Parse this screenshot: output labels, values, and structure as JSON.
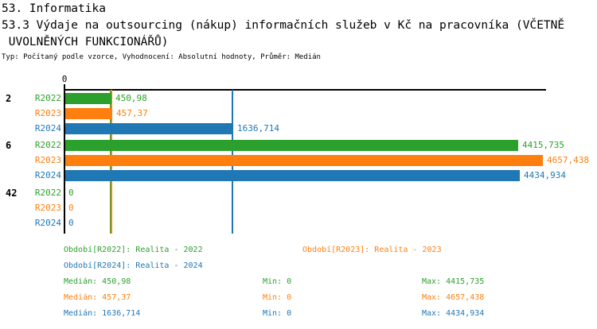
{
  "header": {
    "title": "53. Informatika",
    "subtitle_line1": "53.3 Výdaje na outsourcing (nákup) informačních služeb v Kč na pracovníka (VČETNĚ",
    "subtitle_line2": " UVOLNĚNÝCH FUNKCIONÁŘŮ)",
    "meta": "Typ: Počítaný podle vzorce, Vyhodnocení: Absolutní hodnoty, Průměr: Medián"
  },
  "chart_data": {
    "type": "bar",
    "orientation": "horizontal",
    "title": "53. Informatika",
    "subtitle": "53.3 Výdaje na outsourcing (nákup) informačních služeb v Kč na pracovníka (VČETNĚ UVOLNĚNÝCH FUNKCIONÁŘŮ)",
    "meta": "Typ: Počítaný podle vzorce, Vyhodnocení: Absolutní hodnoty, Průměr: Medián",
    "x_axis": {
      "zero_label": "0",
      "min": 0,
      "grid": false
    },
    "legend_position": "bottom",
    "series": [
      {
        "id": "R2022",
        "name": "Realita - 2022",
        "color": "#2ca02c",
        "median": 450.98,
        "min": 0,
        "max": 4415.735
      },
      {
        "id": "R2023",
        "name": "Realita - 2023",
        "color": "#ff7f0e",
        "median": 457.37,
        "min": 0,
        "max": 4657.438
      },
      {
        "id": "R2024",
        "name": "Realita - 2024",
        "color": "#1f77b4",
        "median": 1636.714,
        "min": 0,
        "max": 4434.934
      }
    ],
    "groups": [
      {
        "label": "2",
        "values": [
          450.98,
          457.37,
          1636.714
        ],
        "value_labels": [
          "450,98",
          "457,37",
          "1636,714"
        ]
      },
      {
        "label": "6",
        "values": [
          4415.735,
          4657.438,
          4434.934
        ],
        "value_labels": [
          "4415,735",
          "4657,438",
          "4434,934"
        ]
      },
      {
        "label": "42",
        "values": [
          0,
          0,
          0
        ],
        "value_labels": [
          "0",
          "0",
          "0"
        ]
      }
    ],
    "median_lines": [
      450.98,
      457.37,
      1636.714
    ]
  },
  "legend": [
    {
      "label": "Období[R2022]: Realita - 2022"
    },
    {
      "label": "Období[R2023]: Realita - 2023"
    },
    {
      "label": "Období[R2024]: Realita - 2024"
    }
  ],
  "stats": [
    {
      "median": "Medián: 450,98",
      "min": "Min: 0",
      "max": "Max: 4415,735"
    },
    {
      "median": "Medián: 457,37",
      "min": "Min: 0",
      "max": "Max: 4657,438"
    },
    {
      "median": "Medián: 1636,714",
      "min": "Min: 0",
      "max": "Max: 4434,934"
    }
  ],
  "colors": {
    "green": "#2ca02c",
    "orange": "#ff7f0e",
    "blue": "#1f77b4",
    "axis": "#000000"
  }
}
